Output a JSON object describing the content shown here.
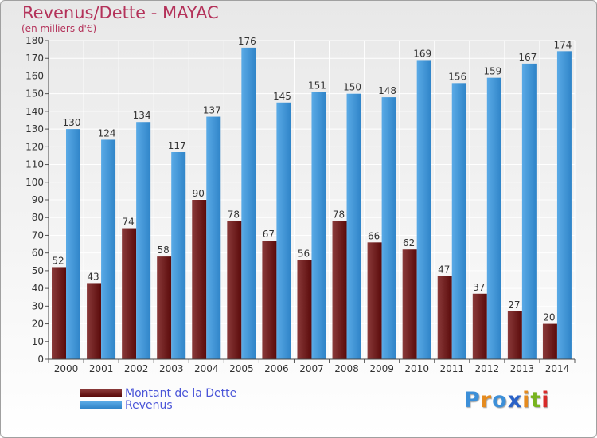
{
  "colors": {
    "title": "#b4325a",
    "dette_top": "#8a3a3a",
    "dette_bottom": "#5a0a0a",
    "revenus_top": "#5aaae6",
    "revenus_bottom": "#2f84c8",
    "legend_text": "#4a55d8"
  },
  "logo": {
    "letters": [
      "P",
      "r",
      "o",
      "x",
      "i",
      "t",
      "i"
    ],
    "colors": [
      "#3c8fd8",
      "#e58b1f",
      "#3c8fd8",
      "#2a62c8",
      "#e58b1f",
      "#78b41e",
      "#d82a2a"
    ]
  },
  "chart_data": {
    "type": "bar",
    "title": "Revenus/Dette - MAYAC",
    "subtitle": "(en milliers d'€)",
    "xlabel": "",
    "ylabel": "",
    "ylim": [
      0,
      180
    ],
    "ytick_step": 10,
    "grid": true,
    "legend_position": "bottom-left",
    "categories": [
      "2000",
      "2001",
      "2002",
      "2003",
      "2004",
      "2005",
      "2006",
      "2007",
      "2008",
      "2009",
      "2010",
      "2011",
      "2012",
      "2013",
      "2014"
    ],
    "series": [
      {
        "name": "Montant de la Dette",
        "values": [
          52,
          43,
          74,
          58,
          90,
          78,
          67,
          56,
          78,
          66,
          62,
          47,
          37,
          27,
          20
        ]
      },
      {
        "name": "Revenus",
        "values": [
          130,
          124,
          134,
          117,
          137,
          176,
          145,
          151,
          150,
          148,
          169,
          156,
          159,
          167,
          174
        ]
      }
    ]
  }
}
